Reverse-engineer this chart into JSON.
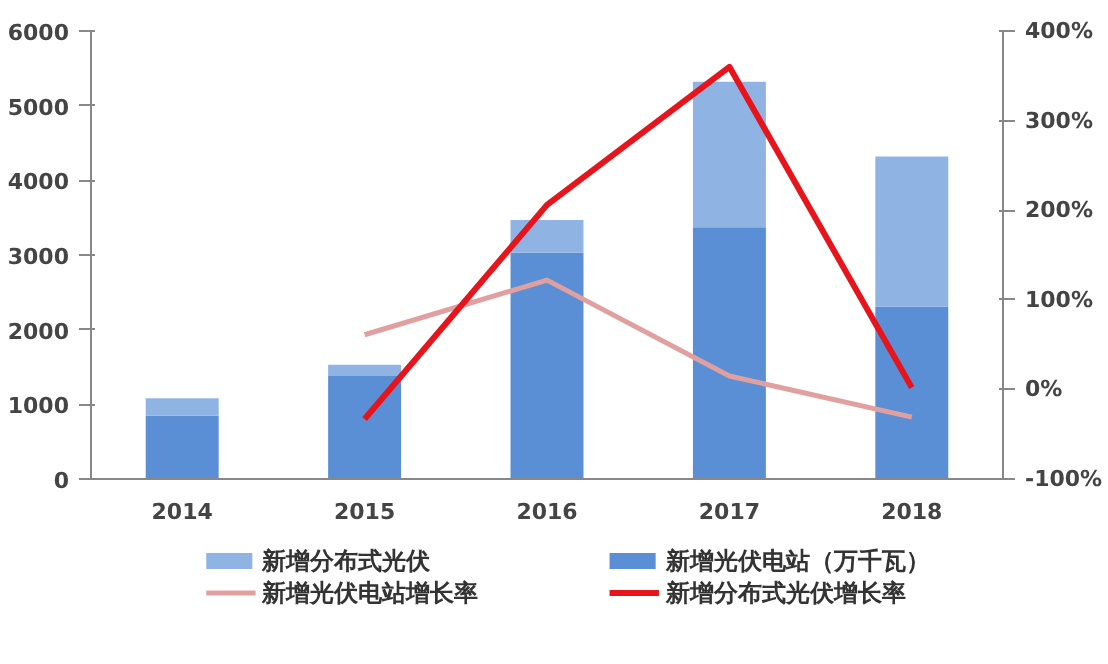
{
  "chart_data": {
    "type": "bar",
    "stacked": true,
    "categories": [
      "2014",
      "2015",
      "2016",
      "2017",
      "2018"
    ],
    "series": [
      {
        "name": "新增光伏电站（万千瓦）",
        "color": "#5a8fd6",
        "values": [
          850,
          1380,
          3030,
          3370,
          2310
        ]
      },
      {
        "name": "新增分布式光伏",
        "color": "#8fb3e3",
        "values": [
          230,
          150,
          440,
          1950,
          2010
        ]
      },
      {
        "name": "新增光伏电站增长率",
        "type": "line",
        "axis": "y2",
        "color": "#e0a0a0",
        "values": [
          null,
          61,
          122,
          15,
          -31
        ]
      },
      {
        "name": "新增分布式光伏增长率",
        "type": "line",
        "axis": "y2",
        "color": "#e8141b",
        "values": [
          null,
          -33,
          206,
          360,
          2
        ]
      }
    ],
    "ylim": [
      0,
      6000
    ],
    "yticks": [
      0,
      1000,
      2000,
      3000,
      4000,
      5000,
      6000
    ],
    "y2lim": [
      -100,
      400
    ],
    "y2ticks": [
      {
        "value": -100,
        "label": "-100%"
      },
      {
        "value": 0,
        "label": "0%"
      },
      {
        "value": 100,
        "label": "100%"
      },
      {
        "value": 200,
        "label": "200%"
      },
      {
        "value": 300,
        "label": "300%"
      },
      {
        "value": 400,
        "label": "400%"
      }
    ],
    "legend": "bottom",
    "grid": false
  }
}
